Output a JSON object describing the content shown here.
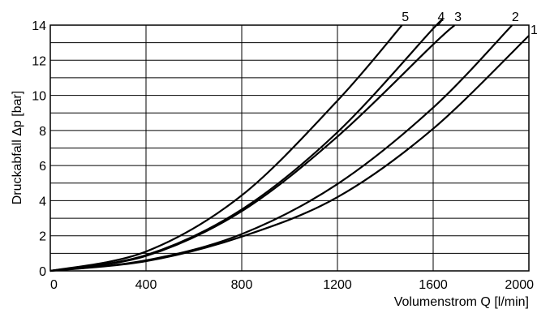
{
  "chart_data": {
    "type": "line",
    "xlabel": "Volumenstrom Q [l/min]",
    "ylabel": "Druckabfall Δp [bar]",
    "xlim": [
      0,
      2000
    ],
    "ylim": [
      0,
      14
    ],
    "x_ticks": [
      "0",
      "400",
      "800",
      "1200",
      "1600",
      "2000"
    ],
    "y_ticks": [
      "0",
      "2",
      "4",
      "6",
      "8",
      "10",
      "12",
      "14"
    ],
    "grid": true,
    "series": [
      {
        "name": "1",
        "x": [
          0,
          400,
          800,
          1200,
          1600,
          2000
        ],
        "y": [
          0,
          0.55,
          1.95,
          4.2,
          8.1,
          13.4
        ]
      },
      {
        "name": "2",
        "x": [
          0,
          400,
          800,
          1200,
          1600,
          1930
        ],
        "y": [
          0,
          0.6,
          2.1,
          4.95,
          9.3,
          14
        ]
      },
      {
        "name": "3",
        "x": [
          0,
          400,
          800,
          1200,
          1600,
          1690
        ],
        "y": [
          0,
          0.85,
          3.4,
          7.65,
          12.9,
          14
        ]
      },
      {
        "name": "4",
        "x": [
          0,
          400,
          800,
          1200,
          1600,
          1620
        ],
        "y": [
          0,
          0.9,
          3.5,
          7.9,
          13.8,
          14
        ]
      },
      {
        "name": "5",
        "x": [
          0,
          400,
          800,
          1200,
          1470
        ],
        "y": [
          0,
          1.1,
          4.3,
          9.7,
          14
        ]
      }
    ]
  }
}
